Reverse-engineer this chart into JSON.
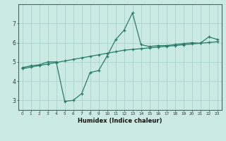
{
  "xlabel": "Humidex (Indice chaleur)",
  "x_values": [
    0,
    1,
    2,
    3,
    4,
    5,
    6,
    7,
    8,
    9,
    10,
    11,
    12,
    13,
    14,
    15,
    16,
    17,
    18,
    19,
    20,
    21,
    22,
    23
  ],
  "line1_y": [
    4.7,
    4.8,
    4.85,
    5.0,
    5.0,
    2.95,
    3.0,
    3.35,
    4.45,
    4.55,
    5.3,
    6.15,
    6.65,
    7.55,
    5.9,
    5.8,
    5.85,
    5.85,
    5.9,
    5.95,
    6.0,
    5.97,
    6.3,
    6.17
  ],
  "line2_y": [
    4.65,
    4.73,
    4.81,
    4.89,
    4.97,
    5.05,
    5.13,
    5.21,
    5.29,
    5.37,
    5.45,
    5.53,
    5.61,
    5.65,
    5.69,
    5.73,
    5.77,
    5.81,
    5.85,
    5.89,
    5.93,
    5.97,
    6.01,
    6.05
  ],
  "line_color": "#2a7a6a",
  "bg_color": "#cceae4",
  "grid_color": "#aad4cc",
  "ylim": [
    2.5,
    8.0
  ],
  "yticks": [
    3,
    4,
    5,
    6,
    7
  ],
  "xticks": [
    0,
    1,
    2,
    3,
    4,
    5,
    6,
    7,
    8,
    9,
    10,
    11,
    12,
    13,
    14,
    15,
    16,
    17,
    18,
    19,
    20,
    21,
    22,
    23
  ],
  "marker": "+"
}
